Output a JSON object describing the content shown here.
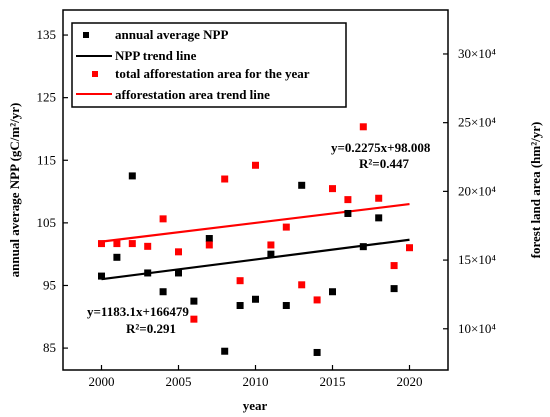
{
  "chart_data": {
    "type": "scatter",
    "xlabel": "year",
    "ylabel_left": "annual average NPP (gC/m²/yr)",
    "ylabel_right": "forest land area (hm²/yr)",
    "x_ticks": [
      "2000",
      "2005",
      "2010",
      "2015",
      "2020"
    ],
    "y_left_ticks": [
      "85",
      "95",
      "105",
      "115",
      "125",
      "135"
    ],
    "y_right_ticks": [
      "10×10⁴",
      "15×10⁴",
      "20×10⁴",
      "25×10⁴",
      "30×10⁴"
    ],
    "xlim": [
      1997.5,
      2022.5
    ],
    "ylim_left": [
      81.5,
      139
    ],
    "ylim_right": [
      7,
      33.2
    ],
    "y_right_unit": 10000,
    "grid": false,
    "legend_position": "top-left",
    "legend": [
      {
        "label": "annual average NPP",
        "kind": "marker",
        "color": "#000000"
      },
      {
        "label": "NPP trend line",
        "kind": "line",
        "color": "#000000"
      },
      {
        "label": "total afforestation area for the year",
        "kind": "marker",
        "color": "#ff0000"
      },
      {
        "label": "afforestation area trend line",
        "kind": "line",
        "color": "#ff0000"
      }
    ],
    "series": [
      {
        "name": "annual average NPP",
        "axis": "left",
        "marker": "square",
        "color": "#000000",
        "x": [
          2000,
          2001,
          2002,
          2003,
          2004,
          2005,
          2006,
          2007,
          2008,
          2009,
          2010,
          2011,
          2012,
          2013,
          2014,
          2015,
          2016,
          2017,
          2018,
          2019
        ],
        "y": [
          96.5,
          99.5,
          112.5,
          97,
          94,
          97,
          92.5,
          102.5,
          84.5,
          91.8,
          92.8,
          100,
          91.8,
          111,
          84.3,
          94,
          106.5,
          101.2,
          105.8,
          94.5
        ]
      },
      {
        "name": "total afforestation area for the year",
        "axis": "right",
        "marker": "square",
        "color": "#ff0000",
        "x": [
          2000,
          2001,
          2002,
          2003,
          2004,
          2005,
          2006,
          2007,
          2008,
          2009,
          2010,
          2011,
          2012,
          2013,
          2014,
          2015,
          2016,
          2017,
          2018,
          2019,
          2020
        ],
        "y": [
          162000,
          162000,
          162000,
          160000,
          180000,
          156000,
          107000,
          161000,
          209000,
          135000,
          219000,
          161000,
          174000,
          132000,
          121000,
          202000,
          194000,
          247000,
          195000,
          146000,
          159000
        ]
      }
    ],
    "trend_lines": [
      {
        "name": "NPP trend line",
        "axis": "left",
        "color": "#000000",
        "x": [
          2000,
          2020
        ],
        "y": [
          96.0,
          102.3
        ]
      },
      {
        "name": "afforestation area trend line",
        "axis": "left",
        "color": "#ff0000",
        "x": [
          2000,
          2020
        ],
        "y": [
          102.0,
          108.0
        ]
      }
    ],
    "annotations": [
      {
        "lines": [
          "y=0.2275x+98.008",
          "R²=0.447"
        ]
      },
      {
        "lines": [
          "y=1183.1x+166479",
          "R²=0.291"
        ]
      }
    ]
  }
}
